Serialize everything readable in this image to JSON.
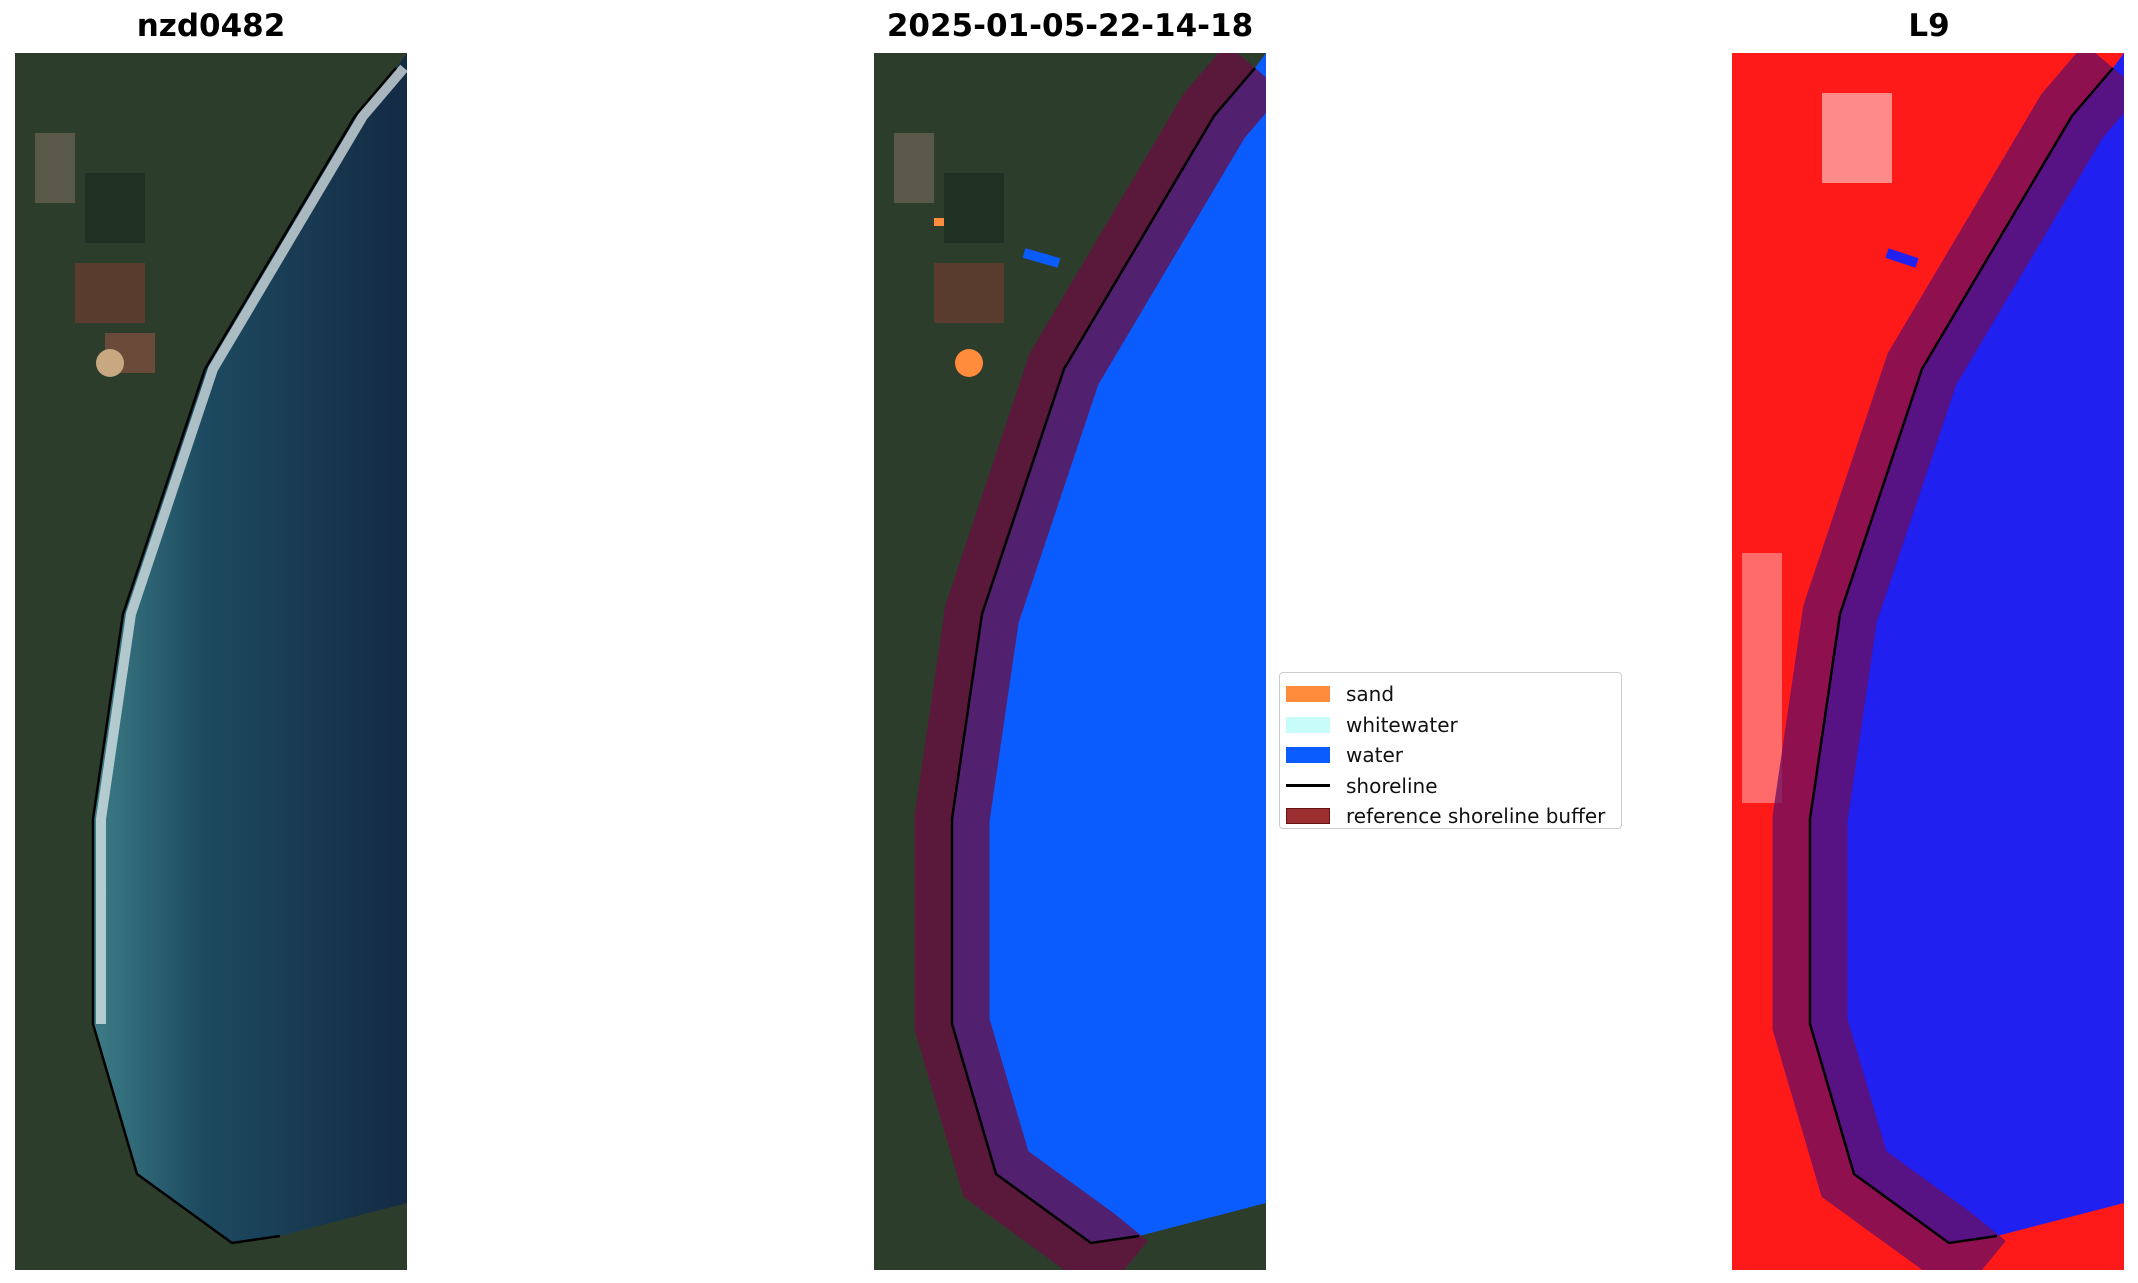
{
  "panels": [
    {
      "title": "nzd0482",
      "kind": "rgb-image"
    },
    {
      "title": "2025-01-05-22-14-18",
      "kind": "classified-image"
    },
    {
      "title": "L9",
      "kind": "index-image"
    }
  ],
  "legend": {
    "placement": "right of middle panel",
    "items": [
      {
        "label": "sand",
        "color": "#ff8c3c",
        "type": "patch"
      },
      {
        "label": "whitewater",
        "color": "#c8fcfa",
        "type": "patch"
      },
      {
        "label": "water",
        "color": "#0a5cff",
        "type": "patch"
      },
      {
        "label": "shoreline",
        "color": "#000000",
        "type": "line"
      },
      {
        "label": "reference shoreline buffer",
        "color": "#9b2e2e",
        "type": "patch"
      }
    ]
  }
}
